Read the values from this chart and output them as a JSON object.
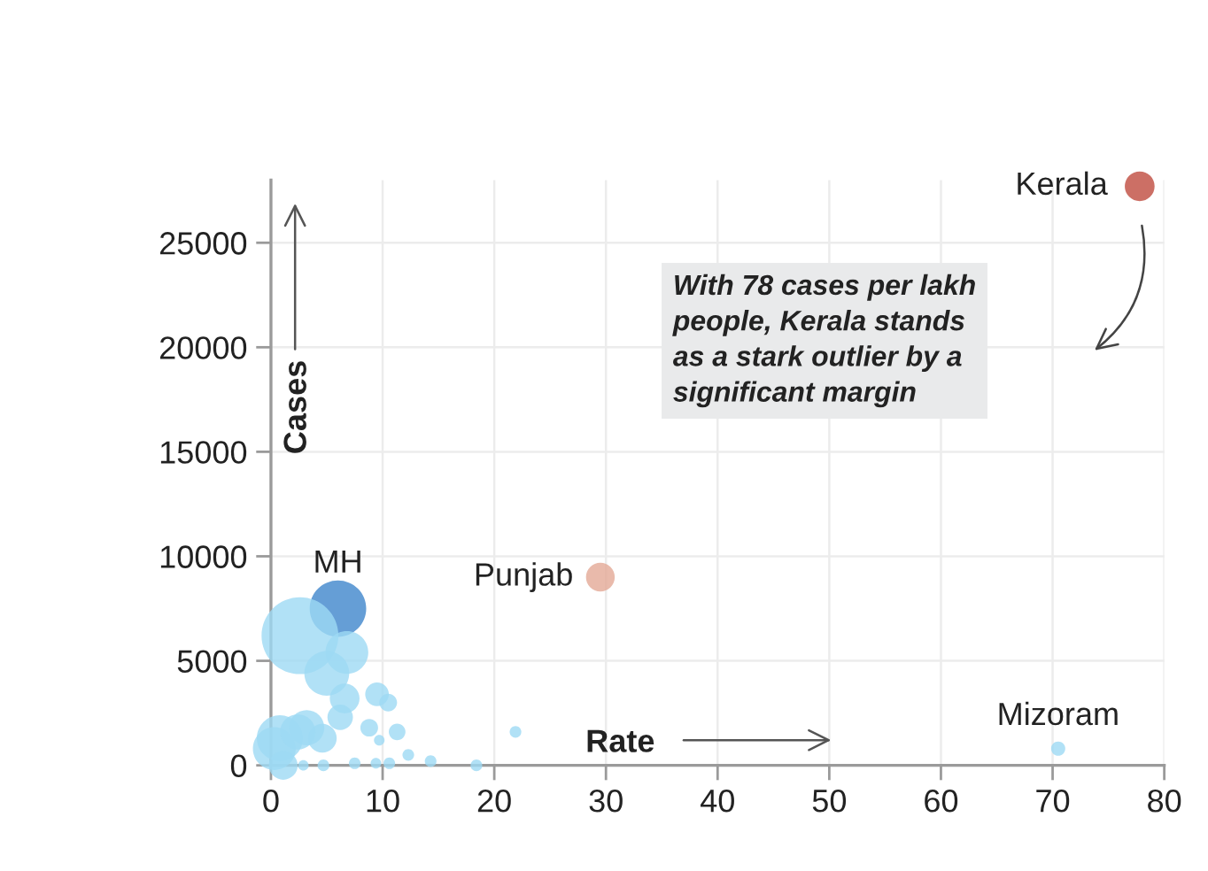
{
  "chart_data": {
    "type": "bubble",
    "xlabel": "Rate",
    "ylabel": "Cases",
    "xlim": [
      0,
      80
    ],
    "xticks": [
      0,
      10,
      20,
      30,
      40,
      50,
      60,
      70,
      80
    ],
    "ylim": [
      0,
      28000
    ],
    "yticks": [
      0,
      5000,
      10000,
      15000,
      20000,
      25000
    ],
    "grid": true,
    "series": [
      {
        "x": [
          6.0,
          2.6,
          6.8,
          5.0,
          6.6,
          9.5,
          10.5,
          6.2,
          8.8,
          9.7,
          11.3,
          12.3,
          14.3,
          18.4,
          21.9,
          10.6,
          9.4,
          7.5,
          4.7,
          2.9,
          0.8,
          0.3,
          3.2,
          4.6,
          2.4,
          1.1,
          77.8,
          29.5,
          70.5
        ],
        "values": [
          7500,
          6200,
          5400,
          4400,
          3200,
          3400,
          3000,
          2300,
          1800,
          1200,
          1600,
          500,
          200,
          0,
          1600,
          100,
          100,
          100,
          0,
          0,
          1300,
          800,
          1800,
          1300,
          1600,
          0,
          27700,
          9000,
          800
        ],
        "sizes": [
          0.54,
          1,
          0.31,
          0.34,
          0.15,
          0.095,
          0.053,
          0.11,
          0.053,
          0.019,
          0.047,
          0.023,
          0.023,
          0.023,
          0.023,
          0.023,
          0.019,
          0.023,
          0.023,
          0.019,
          0.36,
          0.31,
          0.21,
          0.14,
          0.21,
          0.14,
          0.15,
          0.14,
          0.034
        ],
        "colors": [
          "#3f86cc",
          "#9dd9f4",
          "#9dd9f4",
          "#9dd9f4",
          "#9dd9f4",
          "#9dd9f4",
          "#9dd9f4",
          "#9dd9f4",
          "#9dd9f4",
          "#9dd9f4",
          "#9dd9f4",
          "#9dd9f4",
          "#9dd9f4",
          "#9dd9f4",
          "#9dd9f4",
          "#9dd9f4",
          "#9dd9f4",
          "#9dd9f4",
          "#9dd9f4",
          "#9dd9f4",
          "#9dd9f4",
          "#9dd9f4",
          "#9dd9f4",
          "#9dd9f4",
          "#9dd9f4",
          "#9dd9f4",
          "#bf4b3f",
          "#e4a996",
          "#9dd9f4"
        ]
      }
    ],
    "annotations": [
      {
        "text": "MH",
        "x": 6.0,
        "y": 7500
      },
      {
        "text": "Punjab",
        "x": 29.5,
        "y": 9000
      },
      {
        "text": "Kerala",
        "x": 77.8,
        "y": 27700
      },
      {
        "text": "Mizoram",
        "x": 70.5,
        "y": 800
      },
      "With 78 cases per lakh\npeople, Kerala stands\nas a stark outlier by a\nsignificant margin"
    ]
  }
}
